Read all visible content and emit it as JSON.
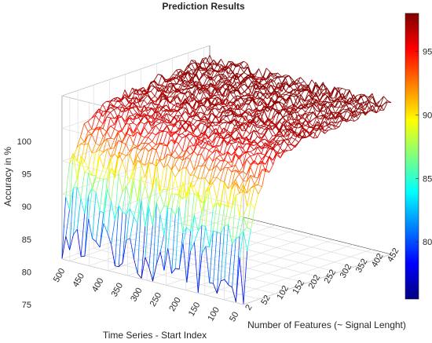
{
  "chart_data": {
    "type": "surface-mesh",
    "title": "Prediction Results",
    "xlabel": "Time Series - Start Index",
    "ylabel": "Number of Features (~ Signal Lenght)",
    "zlabel": "Accuracy in %",
    "x_ticks": [
      "500",
      "450",
      "400",
      "350",
      "300",
      "250",
      "200",
      "150",
      "100",
      "50"
    ],
    "y_ticks": [
      "2",
      "52",
      "102",
      "152",
      "202",
      "252",
      "302",
      "352",
      "402",
      "452"
    ],
    "z_ticks": [
      "75",
      "80",
      "85",
      "90",
      "95",
      "100"
    ],
    "colorbar_ticks": [
      "80",
      "85",
      "90",
      "95"
    ],
    "x_range": [
      50,
      520
    ],
    "y_range": [
      2,
      470
    ],
    "z_range": [
      75,
      100
    ],
    "color_range": [
      75.5,
      98
    ],
    "colormap": "jet",
    "grid": true,
    "surface_profile": {
      "feature_counts": [
        2,
        12,
        22,
        42,
        62,
        82,
        102,
        152,
        202,
        302,
        402,
        470
      ],
      "mean_accuracy": [
        78.5,
        84,
        88,
        91,
        93,
        94.5,
        95.5,
        96.5,
        97,
        97.5,
        97.8,
        98
      ]
    }
  }
}
